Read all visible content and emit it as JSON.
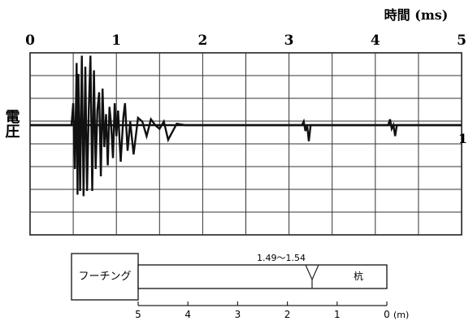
{
  "chart_data": {
    "type": "line",
    "title": "",
    "xlabel": "時間 (ms)",
    "ylabel": "電圧",
    "xlim": [
      0,
      5
    ],
    "ylim": [
      -1,
      1
    ],
    "grid": true,
    "x_ticks": [
      "0",
      "1",
      "2",
      "3",
      "4",
      "5"
    ],
    "right_marker": "1",
    "series": [
      {
        "name": "",
        "x": [
          0.0,
          0.48,
          0.5,
          0.52,
          0.54,
          0.55,
          0.56,
          0.58,
          0.6,
          0.62,
          0.64,
          0.66,
          0.68,
          0.7,
          0.72,
          0.74,
          0.76,
          0.78,
          0.8,
          0.82,
          0.84,
          0.86,
          0.88,
          0.9,
          0.92,
          0.94,
          0.96,
          0.98,
          1.0,
          1.02,
          1.05,
          1.08,
          1.1,
          1.13,
          1.16,
          1.2,
          1.25,
          1.3,
          1.35,
          1.4,
          1.45,
          1.5,
          1.55,
          1.6,
          1.7,
          1.8,
          2.0,
          2.5,
          3.0,
          3.15,
          3.17,
          3.19,
          3.21,
          3.23,
          3.25,
          3.4,
          3.8,
          4.1,
          4.15,
          4.17,
          4.19,
          4.21,
          4.23,
          4.25,
          4.4,
          4.8,
          5.0
        ],
        "y": [
          0.0,
          0.0,
          0.3,
          -0.6,
          0.85,
          -0.95,
          0.7,
          -0.9,
          0.95,
          -0.97,
          0.8,
          -0.9,
          0.2,
          0.95,
          -0.9,
          0.75,
          -0.6,
          0.2,
          0.45,
          -0.7,
          0.5,
          -0.3,
          0.15,
          -0.55,
          0.25,
          0.0,
          -0.45,
          0.3,
          -0.15,
          0.2,
          -0.5,
          0.1,
          0.3,
          -0.35,
          0.05,
          -0.4,
          0.1,
          0.05,
          -0.15,
          0.08,
          0.0,
          -0.05,
          0.05,
          -0.2,
          0.02,
          0.0,
          0.0,
          0.0,
          0.0,
          0.0,
          0.05,
          -0.08,
          0.0,
          -0.22,
          0.0,
          0.0,
          0.0,
          0.0,
          0.0,
          0.08,
          -0.05,
          0.0,
          -0.15,
          0.0,
          0.0,
          0.0,
          0.0
        ]
      }
    ]
  },
  "diagram": {
    "footing_label": "フーチング",
    "pile_label": "杭",
    "crack_range_label": "1.49〜1.54",
    "scale_ticks": [
      "5",
      "4",
      "3",
      "2",
      "1",
      "0"
    ],
    "scale_unit": "(m)"
  }
}
